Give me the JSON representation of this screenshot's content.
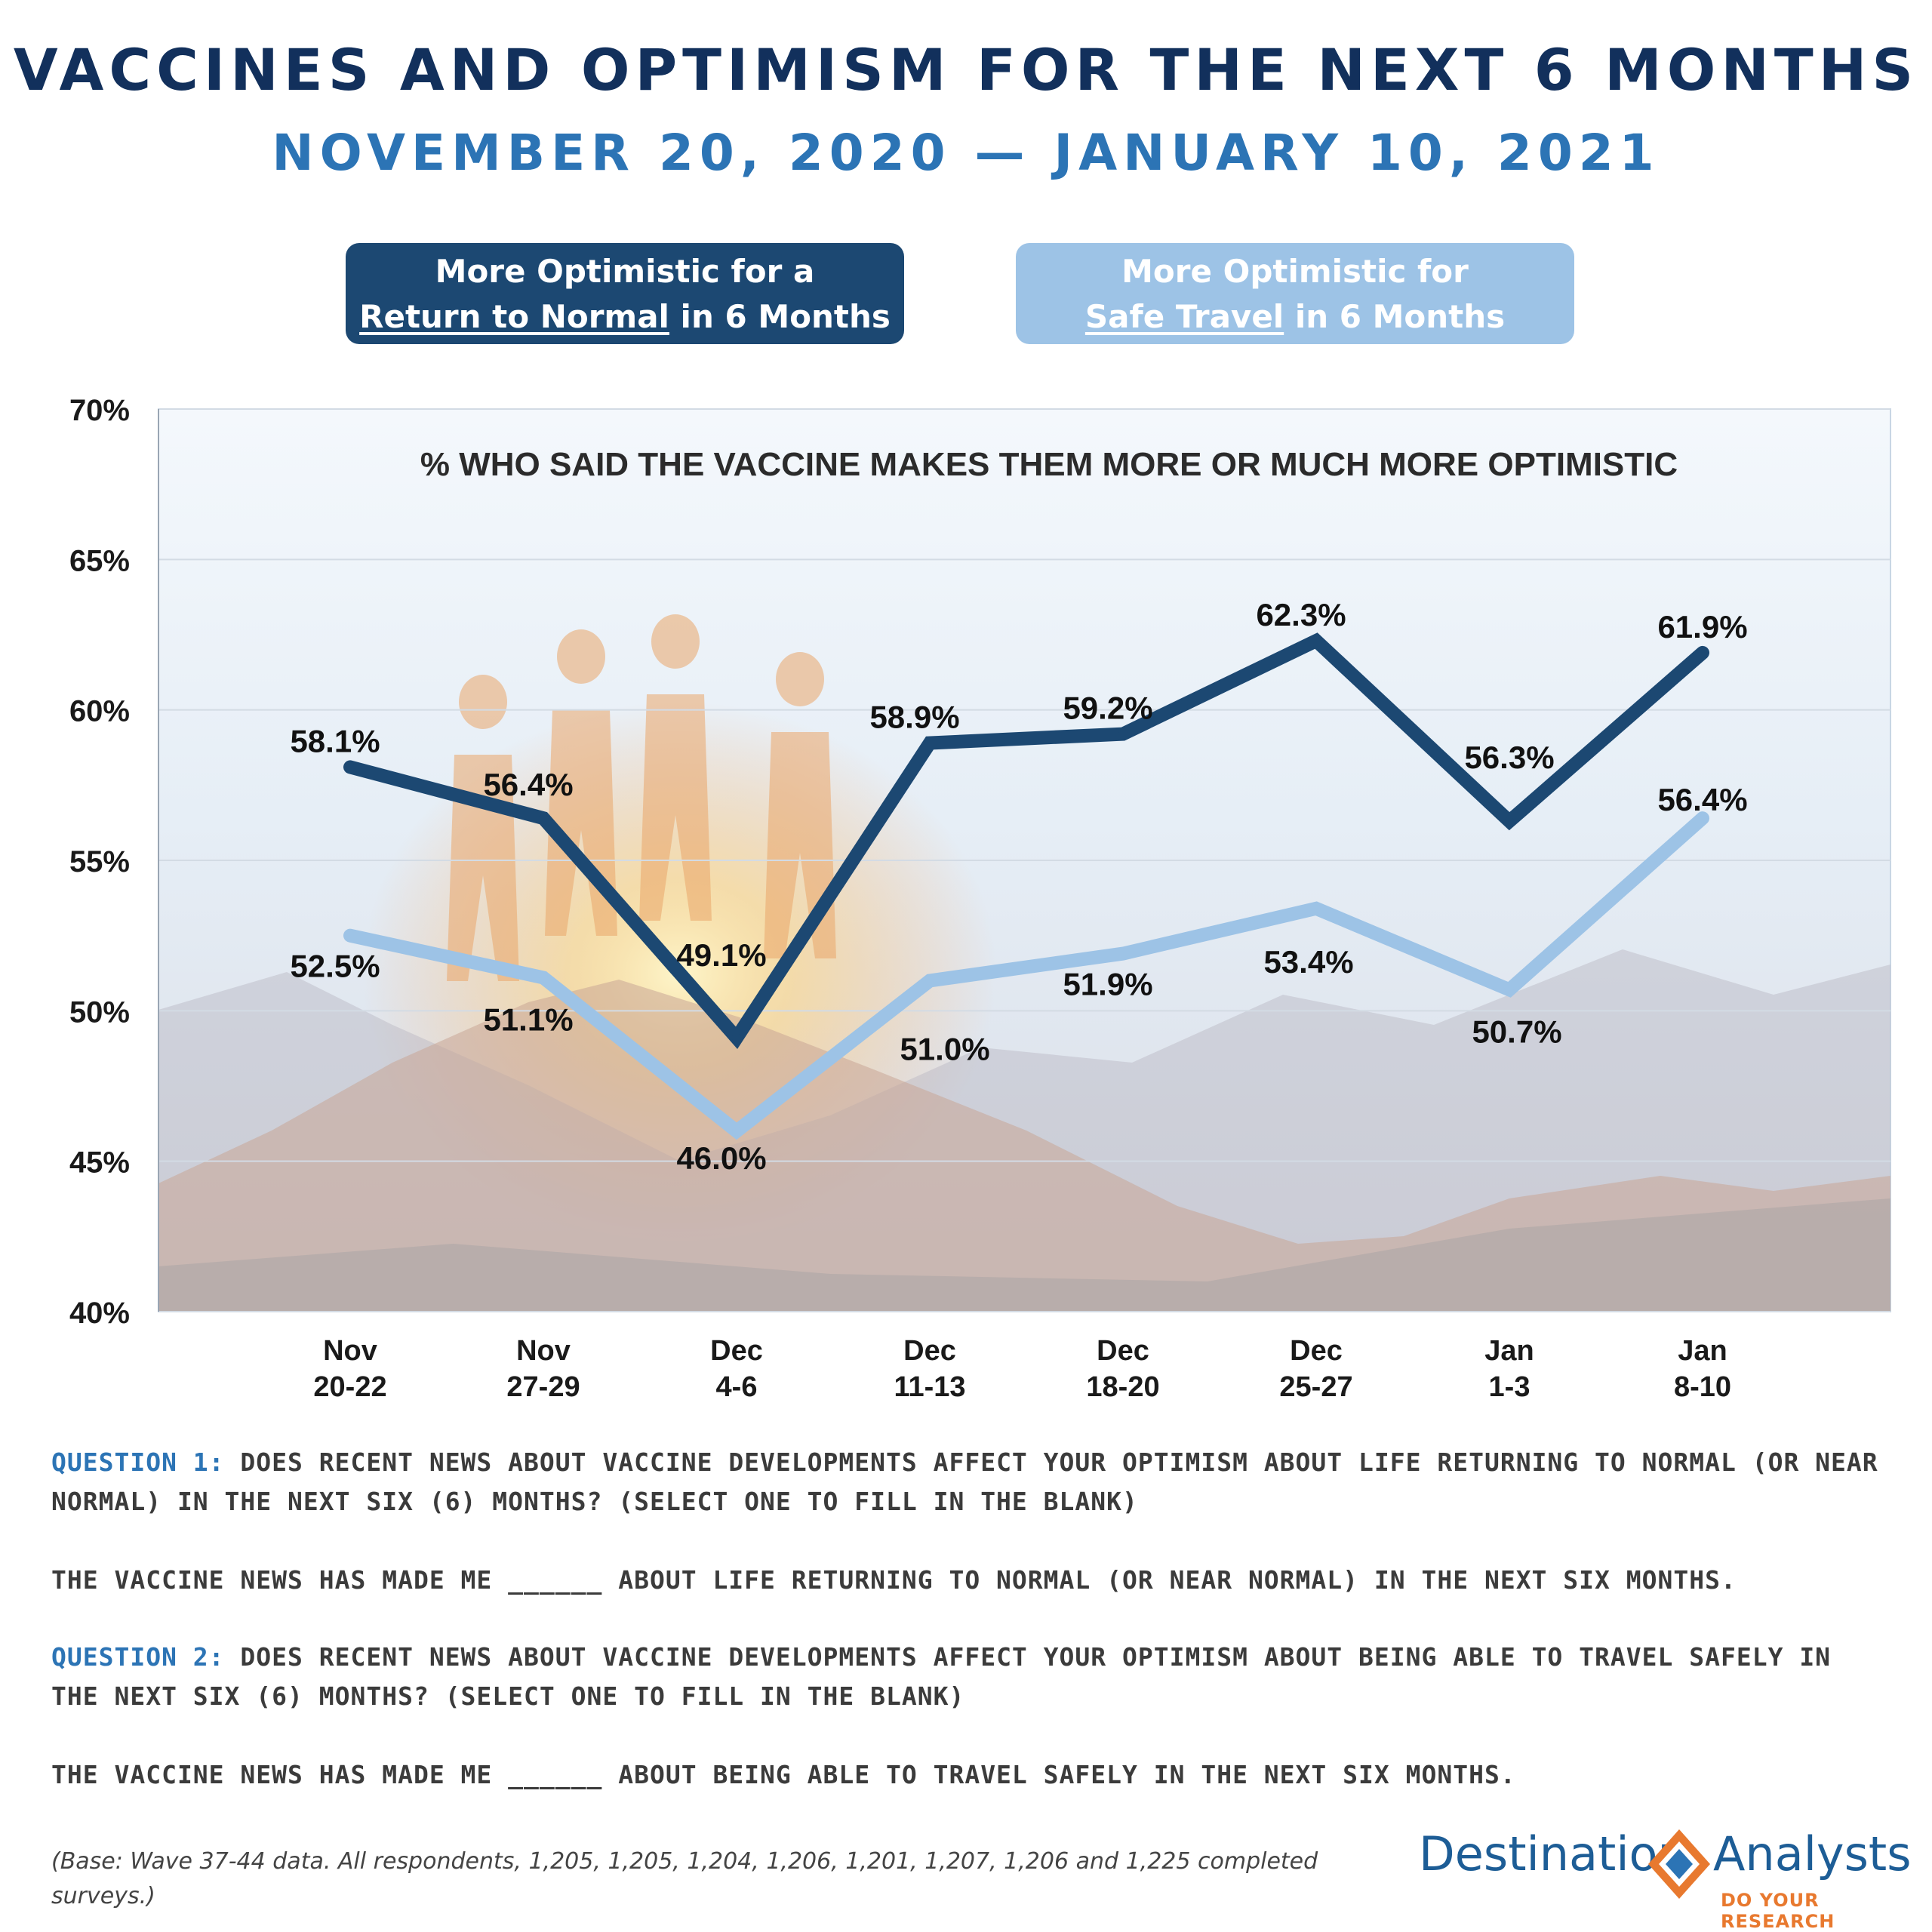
{
  "header": {
    "title": "VACCINES AND OPTIMISM FOR THE NEXT 6 MONTHS",
    "subtitle": "NOVEMBER 20, 2020 — JANUARY 10, 2021"
  },
  "legend": {
    "normal": {
      "line1": "More Optimistic for a",
      "underlined": "Return to Normal",
      "rest": " in 6 Months",
      "color": "#1c4872"
    },
    "travel": {
      "line1": "More Optimistic for",
      "underlined": "Safe Travel",
      "rest": " in 6 Months",
      "color": "#9dc3e6"
    }
  },
  "chart_data": {
    "type": "line",
    "title": "% WHO SAID THE VACCINE MAKES THEM MORE OR MUCH MORE OPTIMISTIC",
    "categories": [
      [
        "Nov",
        "20-22"
      ],
      [
        "Nov",
        "27-29"
      ],
      [
        "Dec",
        "4-6"
      ],
      [
        "Dec",
        "11-13"
      ],
      [
        "Dec",
        "18-20"
      ],
      [
        "Dec",
        "25-27"
      ],
      [
        "Jan",
        "1-3"
      ],
      [
        "Jan",
        "8-10"
      ]
    ],
    "ylim": [
      40,
      70
    ],
    "yticks": [
      40,
      45,
      50,
      55,
      60,
      65,
      70
    ],
    "ytick_labels": [
      "40%",
      "45%",
      "50%",
      "55%",
      "60%",
      "65%",
      "70%"
    ],
    "grid": true,
    "series": [
      {
        "name": "More Optimistic for a Return to Normal in 6 Months",
        "color": "#1c4872",
        "values": [
          58.1,
          56.4,
          49.1,
          58.9,
          59.2,
          62.3,
          56.3,
          61.9
        ],
        "labels": [
          "58.1%",
          "56.4%",
          "49.1%",
          "58.9%",
          "59.2%",
          "62.3%",
          "56.3%",
          "61.9%"
        ]
      },
      {
        "name": "More Optimistic for Safe Travel in 6 Months",
        "color": "#9dc3e6",
        "values": [
          52.5,
          51.1,
          46.0,
          51.0,
          51.9,
          53.4,
          50.7,
          56.4
        ],
        "labels": [
          "52.5%",
          "51.1%",
          "46.0%",
          "51.0%",
          "51.9%",
          "53.4%",
          "50.7%",
          "56.4%"
        ]
      }
    ]
  },
  "questions": {
    "q1_label": "QUESTION 1:",
    "q1_text": " DOES RECENT NEWS ABOUT VACCINE DEVELOPMENTS AFFECT YOUR OPTIMISM ABOUT LIFE RETURNING TO NORMAL (OR NEAR NORMAL) IN THE NEXT SIX (6) MONTHS? (SELECT ONE TO FILL IN THE BLANK)",
    "q1_fill": "THE VACCINE NEWS HAS MADE ME ______ ABOUT LIFE RETURNING TO NORMAL (OR NEAR NORMAL) IN THE NEXT SIX MONTHS.",
    "q2_label": "QUESTION 2:",
    "q2_text": " DOES RECENT NEWS ABOUT VACCINE DEVELOPMENTS AFFECT YOUR OPTIMISM ABOUT BEING ABLE TO TRAVEL SAFELY IN THE NEXT SIX (6) MONTHS? (SELECT ONE TO FILL IN THE BLANK)",
    "q2_fill": "THE VACCINE NEWS HAS MADE ME ______ ABOUT BEING ABLE TO TRAVEL SAFELY IN THE NEXT SIX MONTHS."
  },
  "footer": {
    "base_note": "(Base: Wave 37-44 data. All respondents, 1,205, 1,205, 1,204, 1,206, 1,201, 1,207, 1,206 and 1,225 completed surveys.)",
    "logo_left": "Destination",
    "logo_right": "Analysts",
    "logo_tagline": "DO YOUR RESEARCH"
  },
  "colors": {
    "title": "#12305c",
    "subtitle": "#2c74b5",
    "accent": "#e8792f"
  }
}
